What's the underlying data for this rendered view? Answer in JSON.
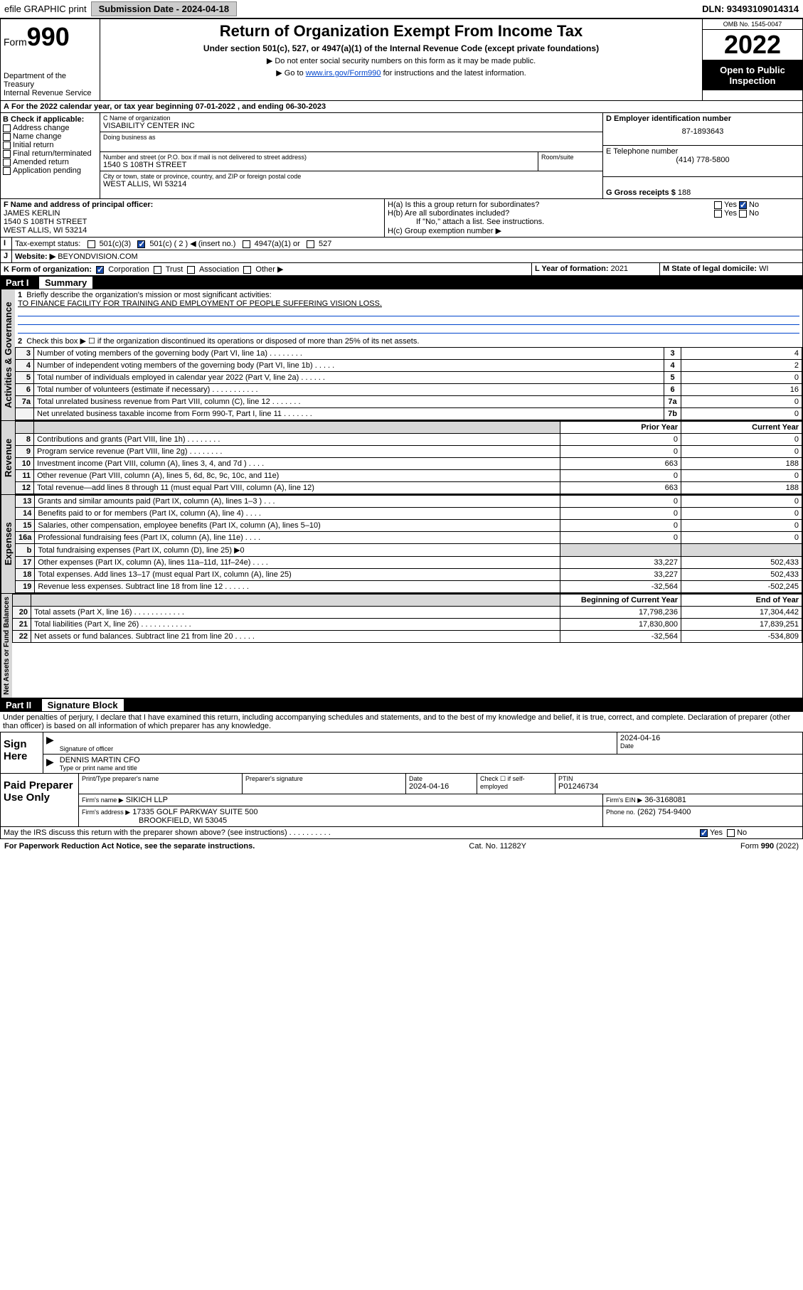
{
  "topbar": {
    "efile": "efile GRAPHIC print",
    "submission_label": "Submission Date - 2024-04-18",
    "dln_label": "DLN: 93493109014314"
  },
  "hdr": {
    "form_word": "Form",
    "form_num": "990",
    "dept": "Department of the Treasury",
    "irs": "Internal Revenue Service",
    "title": "Return of Organization Exempt From Income Tax",
    "subtitle": "Under section 501(c), 527, or 4947(a)(1) of the Internal Revenue Code (except private foundations)",
    "note1": "▶ Do not enter social security numbers on this form as it may be made public.",
    "note2_pre": "▶ Go to ",
    "note2_link": "www.irs.gov/Form990",
    "note2_post": " for instructions and the latest information.",
    "omb": "OMB No. 1545-0047",
    "year": "2022",
    "open": "Open to Public",
    "inspection": "Inspection"
  },
  "lineA": {
    "text_pre": "For the 2022 calendar year, or tax year beginning ",
    "begin": "07-01-2022",
    "text_mid": " , and ending ",
    "end": "06-30-2023"
  },
  "boxB": {
    "label": "B Check if applicable:",
    "items": [
      "Address change",
      "Name change",
      "Initial return",
      "Final return/terminated",
      "Amended return",
      "Application pending"
    ]
  },
  "boxC": {
    "label": "C Name of organization",
    "name": "VISABILITY CENTER INC",
    "dba_label": "Doing business as",
    "addr_label": "Number and street (or P.O. box if mail is not delivered to street address)",
    "room_label": "Room/suite",
    "addr": "1540 S 108TH STREET",
    "city_label": "City or town, state or province, country, and ZIP or foreign postal code",
    "city": "WEST ALLIS, WI  53214"
  },
  "boxD": {
    "label": "D Employer identification number",
    "val": "87-1893643"
  },
  "boxE": {
    "label": "E Telephone number",
    "val": "(414) 778-5800"
  },
  "boxG": {
    "label": "G Gross receipts $",
    "val": "188"
  },
  "boxF": {
    "label": "F  Name and address of principal officer:",
    "name": "JAMES KERLIN",
    "addr1": "1540 S 108TH STREET",
    "addr2": "WEST ALLIS, WI  53214"
  },
  "boxH": {
    "ha": "H(a)  Is this a group return for subordinates?",
    "hb": "H(b)  Are all subordinates included?",
    "hb_note": "If \"No,\" attach a list. See instructions.",
    "hc": "H(c)  Group exemption number ▶",
    "yes": "Yes",
    "no": "No"
  },
  "boxI": {
    "label": "Tax-exempt status:",
    "o1": "501(c)(3)",
    "o2_pre": "501(c) ( 2 ) ",
    "o2_post": "◀ (insert no.)",
    "o3": "4947(a)(1) or",
    "o4": "527"
  },
  "boxJ": {
    "label": "Website: ▶",
    "val": "BEYONDVISION.COM"
  },
  "boxK": {
    "label": "K Form of organization:",
    "opts": [
      "Corporation",
      "Trust",
      "Association",
      "Other ▶"
    ]
  },
  "boxL": {
    "label": "L Year of formation:",
    "val": "2021"
  },
  "boxM": {
    "label": "M State of legal domicile:",
    "val": "WI"
  },
  "part1": {
    "title": "Part I",
    "name": "Summary",
    "l1_label": "Briefly describe the organization's mission or most significant activities:",
    "l1_val": "TO FINANCE FACILITY FOR TRAINING AND EMPLOYMENT OF PEOPLE SUFFERING VISION LOSS.",
    "l2": "Check this box ▶ ☐  if the organization discontinued its operations or disposed of more than 25% of its net assets.",
    "prior": "Prior Year",
    "current": "Current Year",
    "begin": "Beginning of Current Year",
    "end": "End of Year",
    "g_act": "Activities & Governance",
    "g_rev": "Revenue",
    "g_exp": "Expenses",
    "g_net": "Net Assets or Fund Balances",
    "rows_gov": [
      {
        "n": "3",
        "t": "Number of voting members of the governing body (Part VI, line 1a)   .    .    .    .    .    .    .    .",
        "box": "3",
        "v": "4"
      },
      {
        "n": "4",
        "t": "Number of independent voting members of the governing body (Part VI, line 1b)   .    .    .    .    .",
        "box": "4",
        "v": "2"
      },
      {
        "n": "5",
        "t": "Total number of individuals employed in calendar year 2022 (Part V, line 2a)   .    .    .    .    .    .",
        "box": "5",
        "v": "0"
      },
      {
        "n": "6",
        "t": "Total number of volunteers (estimate if necessary)   .    .    .    .    .    .    .    .    .    .    .",
        "box": "6",
        "v": "16"
      },
      {
        "n": "7a",
        "t": "Total unrelated business revenue from Part VIII, column (C), line 12   .    .    .    .    .    .    .",
        "box": "7a",
        "v": "0"
      },
      {
        "n": "",
        "t": "Net unrelated business taxable income from Form 990-T, Part I, line 11   .    .    .    .    .    .    .",
        "box": "7b",
        "v": "0"
      }
    ],
    "rows_rev": [
      {
        "n": "8",
        "t": "Contributions and grants (Part VIII, line 1h)   .    .    .    .    .    .    .    .",
        "p": "0",
        "c": "0"
      },
      {
        "n": "9",
        "t": "Program service revenue (Part VIII, line 2g)   .    .    .    .    .    .    .    .",
        "p": "0",
        "c": "0"
      },
      {
        "n": "10",
        "t": "Investment income (Part VIII, column (A), lines 3, 4, and 7d )   .    .    .    .",
        "p": "663",
        "c": "188"
      },
      {
        "n": "11",
        "t": "Other revenue (Part VIII, column (A), lines 5, 6d, 8c, 9c, 10c, and 11e)",
        "p": "0",
        "c": "0"
      },
      {
        "n": "12",
        "t": "Total revenue—add lines 8 through 11 (must equal Part VIII, column (A), line 12)",
        "p": "663",
        "c": "188"
      }
    ],
    "rows_exp": [
      {
        "n": "13",
        "t": "Grants and similar amounts paid (Part IX, column (A), lines 1–3 )   .    .    .",
        "p": "0",
        "c": "0"
      },
      {
        "n": "14",
        "t": "Benefits paid to or for members (Part IX, column (A), line 4)   .    .    .    .",
        "p": "0",
        "c": "0"
      },
      {
        "n": "15",
        "t": "Salaries, other compensation, employee benefits (Part IX, column (A), lines 5–10)",
        "p": "0",
        "c": "0"
      },
      {
        "n": "16a",
        "t": "Professional fundraising fees (Part IX, column (A), line 11e)   .    .    .    .",
        "p": "0",
        "c": "0"
      },
      {
        "n": "b",
        "t": "Total fundraising expenses (Part IX, column (D), line 25) ▶0",
        "p": "",
        "c": "",
        "shade": true
      },
      {
        "n": "17",
        "t": "Other expenses (Part IX, column (A), lines 11a–11d, 11f–24e)   .    .    .    .",
        "p": "33,227",
        "c": "502,433"
      },
      {
        "n": "18",
        "t": "Total expenses. Add lines 13–17 (must equal Part IX, column (A), line 25)",
        "p": "33,227",
        "c": "502,433"
      },
      {
        "n": "19",
        "t": "Revenue less expenses. Subtract line 18 from line 12   .    .    .    .    .    .",
        "p": "-32,564",
        "c": "-502,245"
      }
    ],
    "rows_net": [
      {
        "n": "20",
        "t": "Total assets (Part X, line 16)   .    .    .    .    .    .    .    .    .    .    .    .",
        "p": "17,798,236",
        "c": "17,304,442"
      },
      {
        "n": "21",
        "t": "Total liabilities (Part X, line 26)   .    .    .    .    .    .    .    .    .    .    .    .",
        "p": "17,830,800",
        "c": "17,839,251"
      },
      {
        "n": "22",
        "t": "Net assets or fund balances. Subtract line 21 from line 20   .    .    .    .    .",
        "p": "-32,564",
        "c": "-534,809"
      }
    ]
  },
  "part2": {
    "title": "Part II",
    "name": "Signature Block",
    "decl": "Under penalties of perjury, I declare that I have examined this return, including accompanying schedules and statements, and to the best of my knowledge and belief, it is true, correct, and complete. Declaration of preparer (other than officer) is based on all information of which preparer has any knowledge.",
    "sign_here": "Sign Here",
    "sig_off": "Signature of officer",
    "sig_date": "Date",
    "sig_date_val": "2024-04-16",
    "officer": "DENNIS MARTIN  CFO",
    "type_name": "Type or print name and title",
    "paid": "Paid Preparer Use Only",
    "prep_name_lbl": "Print/Type preparer's name",
    "prep_sig_lbl": "Preparer's signature",
    "date_lbl": "Date",
    "date_val": "2024-04-16",
    "check_lbl": "Check ☐ if self-employed",
    "ptin_lbl": "PTIN",
    "ptin_val": "P01246734",
    "firm_name_lbl": "Firm's name    ▶",
    "firm_name": "SIKICH LLP",
    "firm_ein_lbl": "Firm's EIN ▶",
    "firm_ein": "36-3168081",
    "firm_addr_lbl": "Firm's address ▶",
    "firm_addr1": "17335 GOLF PARKWAY SUITE 500",
    "firm_addr2": "BROOKFIELD, WI  53045",
    "phone_lbl": "Phone no.",
    "phone": "(262) 754-9400",
    "discuss": "May the IRS discuss this return with the preparer shown above? (see instructions)   .    .    .    .    .    .    .    .    .    .",
    "yes": "Yes",
    "no": "No"
  },
  "footer": {
    "left": "For Paperwork Reduction Act Notice, see the separate instructions.",
    "mid": "Cat. No. 11282Y",
    "right": "Form 990 (2022)"
  }
}
